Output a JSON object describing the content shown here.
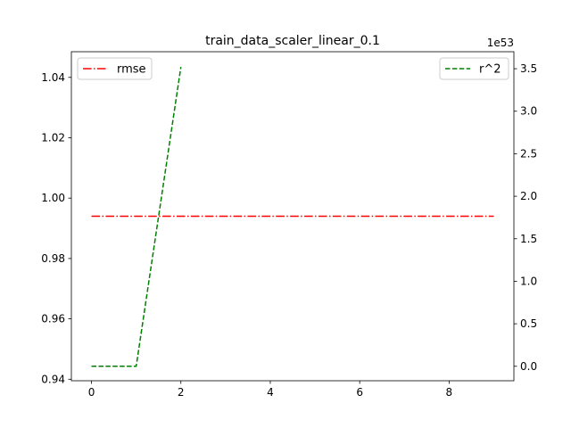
{
  "chart_data": {
    "type": "line",
    "title": "train_data_scaler_linear_0.1",
    "x": [
      0,
      1,
      2,
      3,
      4,
      5,
      6,
      7,
      8,
      9
    ],
    "x_ticks": [
      "0",
      "2",
      "4",
      "6",
      "8"
    ],
    "xlim": [
      -0.45,
      9.45
    ],
    "left_axis": {
      "ylim": [
        0.9395,
        1.0485
      ],
      "ticks": [
        "0.94",
        "0.96",
        "0.98",
        "1.00",
        "1.02",
        "1.04"
      ]
    },
    "right_axis": {
      "ylim": [
        -0.17,
        3.7
      ],
      "ticks": [
        "0.0",
        "0.5",
        "1.0",
        "1.5",
        "2.0",
        "2.5",
        "3.0",
        "3.5"
      ],
      "offset_label": "1e53"
    },
    "series": [
      {
        "name": "rmse",
        "axis": "left",
        "color": "#ff0000",
        "style": "dashdot",
        "x": [
          0,
          1,
          2,
          3,
          4,
          5,
          6,
          7,
          8,
          9
        ],
        "values": [
          0.994,
          0.994,
          0.994,
          0.994,
          0.994,
          0.994,
          0.994,
          0.994,
          0.994,
          0.994
        ]
      },
      {
        "name": "r^2",
        "axis": "right",
        "color": "#008000",
        "style": "dashed",
        "x": [
          0,
          1,
          2
        ],
        "values": [
          0.0,
          0.0,
          3.52
        ]
      }
    ],
    "legend": [
      {
        "label": "rmse",
        "placement": "upper-left"
      },
      {
        "label": "r^2",
        "placement": "upper-right"
      }
    ],
    "grid": false
  }
}
